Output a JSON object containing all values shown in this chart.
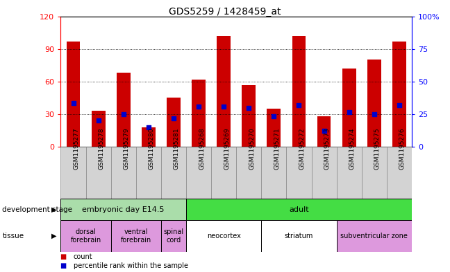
{
  "title": "GDS5259 / 1428459_at",
  "samples": [
    "GSM1195277",
    "GSM1195278",
    "GSM1195279",
    "GSM1195280",
    "GSM1195281",
    "GSM1195268",
    "GSM1195269",
    "GSM1195270",
    "GSM1195271",
    "GSM1195272",
    "GSM1195273",
    "GSM1195274",
    "GSM1195275",
    "GSM1195276"
  ],
  "counts": [
    97,
    33,
    68,
    18,
    45,
    62,
    102,
    57,
    35,
    102,
    28,
    72,
    80,
    97
  ],
  "percentiles": [
    40,
    24,
    30,
    18,
    26,
    37,
    37,
    36,
    28,
    38,
    15,
    32,
    30,
    38
  ],
  "ylim_left": [
    0,
    120
  ],
  "ylim_right": [
    0,
    100
  ],
  "yticks_left": [
    0,
    30,
    60,
    90,
    120
  ],
  "yticks_right": [
    0,
    25,
    50,
    75,
    100
  ],
  "ytick_labels_right": [
    "0",
    "25",
    "50",
    "75",
    "100%"
  ],
  "bar_color": "#cc0000",
  "dot_color": "#0000cc",
  "bar_width": 0.55,
  "plot_bg": "#ffffff",
  "xlabel_bg": "#d0d0d0",
  "dev_stage_row": {
    "label": "development stage",
    "groups": [
      {
        "name": "embryonic day E14.5",
        "start": 0,
        "end": 5,
        "color": "#aaddaa"
      },
      {
        "name": "adult",
        "start": 5,
        "end": 14,
        "color": "#44dd44"
      }
    ]
  },
  "tissue_row": {
    "label": "tissue",
    "groups": [
      {
        "name": "dorsal\nforebrain",
        "start": 0,
        "end": 2,
        "color": "#dd99dd"
      },
      {
        "name": "ventral\nforebrain",
        "start": 2,
        "end": 4,
        "color": "#dd99dd"
      },
      {
        "name": "spinal\ncord",
        "start": 4,
        "end": 5,
        "color": "#dd99dd"
      },
      {
        "name": "neocortex",
        "start": 5,
        "end": 8,
        "color": "#ffffff"
      },
      {
        "name": "striatum",
        "start": 8,
        "end": 11,
        "color": "#ffffff"
      },
      {
        "name": "subventricular zone",
        "start": 11,
        "end": 14,
        "color": "#dd99dd"
      }
    ]
  },
  "legend_items": [
    {
      "label": "count",
      "color": "#cc0000"
    },
    {
      "label": "percentile rank within the sample",
      "color": "#0000cc"
    }
  ]
}
